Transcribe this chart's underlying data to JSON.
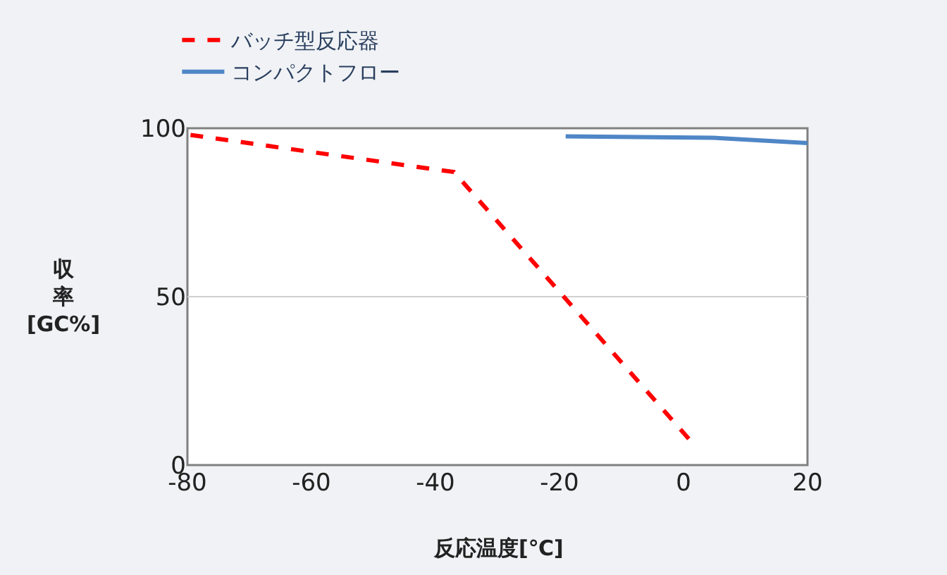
{
  "chart_data": {
    "type": "line",
    "xlabel": "反応温度[℃]",
    "ylabel": "収率[GC%]",
    "xlim": [
      -80,
      20
    ],
    "xticks": [
      -80,
      -60,
      -40,
      -20,
      0,
      20
    ],
    "ylim": [
      0,
      100
    ],
    "yticks": [
      0,
      50,
      100
    ],
    "grid": "y",
    "legend": "top left",
    "marker": "none",
    "series": [
      {
        "name": "バッチ型反応器",
        "color": "#ff0000",
        "line_style": "dashed",
        "x": [
          -79.5,
          -37,
          1
        ],
        "values": [
          98,
          87,
          7.5
        ]
      },
      {
        "name": "コンパクトフロー",
        "color": "#4f86c6",
        "line_style": "solid",
        "x": [
          -19,
          4.5,
          20
        ],
        "values": [
          97.6,
          97.2,
          95.6
        ]
      }
    ]
  }
}
